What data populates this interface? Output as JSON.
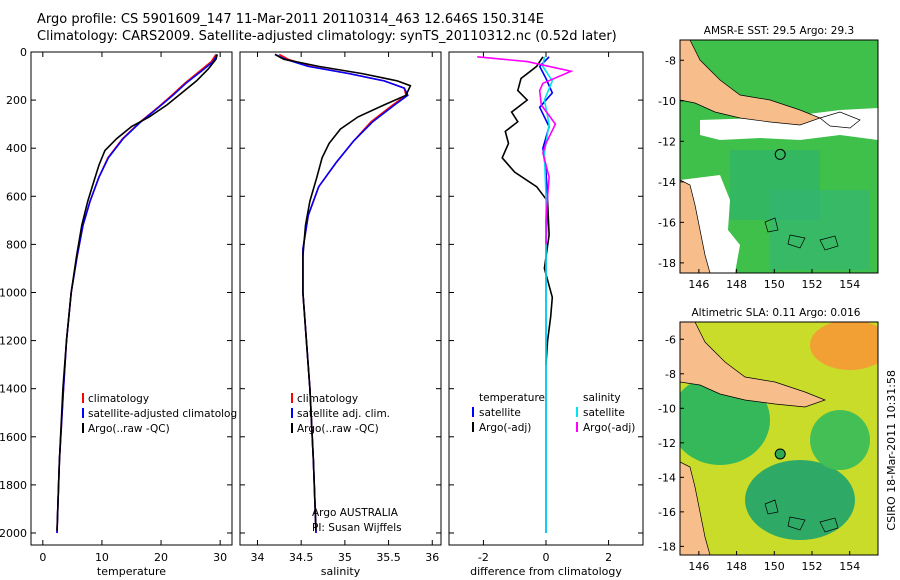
{
  "header": {
    "line1": "Argo profile: CS 5901609_147 11-Mar-2011 20110314_463 12.646S 150.314E",
    "line2": "Climatology: CARS2009. Satellite-adjusted climatology: synTS_20110312.nc (0.52d later)"
  },
  "side_stamp": "CSIRO 18-Mar-2011 10:31:58",
  "colors": {
    "clim": "#ff0000",
    "sat": "#0000ff",
    "argo": "#000000",
    "sat_sal": "#00e5ee",
    "argo_sal": "#ff00ff",
    "land": "#f7be8c",
    "sea_green": "#3fc84a",
    "sea_yellow": "#d8e020"
  },
  "chart_data": [
    {
      "type": "line",
      "panel": "temperature",
      "xlabel": "temperature",
      "ylabel": "",
      "xlim": [
        -2,
        32
      ],
      "ylim": [
        2050,
        0
      ],
      "xticks": [
        "0",
        "10",
        "20",
        "30"
      ],
      "xtick_values": [
        0,
        10,
        20,
        30
      ],
      "yticks": [
        "0",
        "200",
        "400",
        "600",
        "800",
        "1000",
        "1200",
        "1400",
        "1600",
        "1800",
        "2000"
      ],
      "ytick_values": [
        0,
        200,
        400,
        600,
        800,
        1000,
        1200,
        1400,
        1600,
        1800,
        2000
      ],
      "legend": [
        "climatology",
        "satellite-adjusted climatolog",
        "Argo(..raw -QC)"
      ],
      "series": [
        {
          "name": "climatology",
          "color": "clim",
          "x": [
            29.3,
            28.5,
            26.5,
            24.0,
            21.8,
            19.5,
            16.5,
            13.5,
            11.0,
            9.5,
            8.0,
            6.8,
            5.8,
            4.8,
            4.0,
            3.5,
            2.8,
            2.4
          ],
          "y": [
            10,
            40,
            80,
            130,
            180,
            230,
            290,
            360,
            440,
            520,
            620,
            720,
            850,
            1000,
            1200,
            1400,
            1700,
            2000
          ]
        },
        {
          "name": "satellite-adjusted climatolog",
          "color": "sat",
          "x": [
            29.5,
            28.8,
            26.8,
            24.2,
            22.0,
            19.6,
            16.6,
            13.6,
            11.1,
            9.5,
            8.0,
            6.8,
            5.8,
            4.8,
            4.0,
            3.5,
            2.8,
            2.4
          ],
          "y": [
            10,
            40,
            80,
            130,
            180,
            230,
            290,
            360,
            440,
            520,
            620,
            720,
            850,
            1000,
            1200,
            1400,
            1700,
            2000
          ]
        },
        {
          "name": "Argo(..raw -QC)",
          "color": "argo",
          "x": [
            29.5,
            29.3,
            28.0,
            26.0,
            23.5,
            21.0,
            18.0,
            15.0,
            12.5,
            10.5,
            9.5,
            8.6,
            7.6,
            6.6,
            5.7,
            4.8,
            4.0,
            3.4,
            2.8,
            2.4
          ],
          "y": [
            10,
            30,
            70,
            120,
            170,
            220,
            270,
            310,
            360,
            410,
            470,
            540,
            620,
            720,
            850,
            1000,
            1200,
            1400,
            1700,
            1990
          ]
        }
      ]
    },
    {
      "type": "line",
      "panel": "salinity",
      "xlabel": "salinity",
      "ylabel": "",
      "xlim": [
        33.8,
        36.1
      ],
      "ylim": [
        2050,
        0
      ],
      "xticks": [
        "34",
        "34.5",
        "35",
        "35.5",
        "36"
      ],
      "xtick_values": [
        34,
        34.5,
        35,
        35.5,
        36
      ],
      "legend": [
        "climatology",
        "satellite adj. clim.",
        "Argo(..raw -QC)"
      ],
      "annotation": [
        "Argo AUSTRALIA",
        "PI: Susan Wijffels"
      ],
      "series": [
        {
          "name": "climatology",
          "color": "clim",
          "x": [
            34.25,
            34.35,
            34.6,
            35.05,
            35.45,
            35.68,
            35.7,
            35.55,
            35.3,
            35.1,
            34.9,
            34.7,
            34.58,
            34.52,
            34.52,
            34.56,
            34.6,
            34.64,
            34.67
          ],
          "y": [
            10,
            30,
            60,
            90,
            120,
            150,
            180,
            220,
            290,
            370,
            460,
            560,
            680,
            820,
            1000,
            1200,
            1400,
            1700,
            2000
          ]
        },
        {
          "name": "satellite adj. clim.",
          "color": "sat",
          "x": [
            34.2,
            34.32,
            34.58,
            35.05,
            35.45,
            35.68,
            35.72,
            35.57,
            35.32,
            35.1,
            34.9,
            34.7,
            34.58,
            34.52,
            34.52,
            34.56,
            34.6,
            34.64,
            34.67
          ],
          "y": [
            10,
            30,
            60,
            90,
            120,
            150,
            180,
            220,
            290,
            370,
            460,
            560,
            680,
            820,
            1000,
            1200,
            1400,
            1700,
            2000
          ]
        },
        {
          "name": "Argo(..raw -QC)",
          "color": "argo",
          "x": [
            34.2,
            34.3,
            34.7,
            35.2,
            35.6,
            35.75,
            35.7,
            35.45,
            35.15,
            34.95,
            34.82,
            34.74,
            34.68,
            34.6,
            34.55,
            34.52,
            34.52,
            34.56,
            34.6,
            34.64,
            34.67
          ],
          "y": [
            10,
            30,
            60,
            90,
            120,
            140,
            180,
            220,
            270,
            320,
            380,
            440,
            520,
            620,
            720,
            850,
            1000,
            1200,
            1400,
            1700,
            1990
          ]
        }
      ]
    },
    {
      "type": "line",
      "panel": "difference",
      "xlabel": "difference from climatology",
      "ylabel": "",
      "xlim": [
        -3.1,
        3.1
      ],
      "ylim": [
        2050,
        0
      ],
      "xticks": [
        "-2",
        "0",
        "2"
      ],
      "xtick_values": [
        -2,
        0,
        2
      ],
      "legend_left_title": "temperature",
      "legend_right_title": "salinity",
      "legend_left": [
        "satellite",
        "Argo(-adj)"
      ],
      "legend_right": [
        "satellite",
        "Argo(-adj)"
      ],
      "series": [
        {
          "name": "temperature satellite",
          "color": "sat",
          "x": [
            0.1,
            -0.2,
            0.0,
            0.2,
            -0.2,
            0.1,
            -0.1,
            0.0,
            0.05,
            0.0,
            0.0,
            0.0,
            0.0
          ],
          "y": [
            20,
            60,
            110,
            170,
            230,
            310,
            400,
            500,
            600,
            800,
            1000,
            1500,
            2000
          ]
        },
        {
          "name": "temperature Argo(-adj)",
          "color": "argo",
          "x": [
            -0.1,
            -0.3,
            -0.8,
            -0.9,
            -0.6,
            -1.1,
            -0.9,
            -1.3,
            -1.2,
            -1.4,
            -1.0,
            -0.3,
            0.05,
            0.1,
            -0.05,
            0.2,
            0.15,
            0.05,
            0.0
          ],
          "y": [
            20,
            60,
            110,
            160,
            200,
            250,
            290,
            330,
            380,
            440,
            500,
            560,
            620,
            760,
            900,
            1020,
            1100,
            1200,
            1300
          ]
        },
        {
          "name": "salinity satellite",
          "color": "sat_sal",
          "x": [
            -0.05,
            -0.1,
            0.2,
            -0.05,
            0.1,
            -0.05,
            0.0,
            0.0,
            0.0
          ],
          "y": [
            20,
            60,
            120,
            200,
            300,
            420,
            600,
            1000,
            2000
          ]
        },
        {
          "name": "salinity Argo(-adj)",
          "color": "argo_sal",
          "x": [
            -2.2,
            -0.6,
            0.8,
            -0.1,
            -0.2,
            -0.15,
            0.3,
            0.0,
            -0.1,
            0.1,
            0.05,
            0.0,
            0.0
          ],
          "y": [
            20,
            40,
            80,
            130,
            160,
            220,
            300,
            380,
            420,
            520,
            600,
            700,
            800
          ]
        }
      ]
    },
    {
      "type": "heatmap",
      "panel": "sst_map",
      "title": "AMSR-E SST: 29.5 Argo: 29.3",
      "xlim": [
        145,
        155.5
      ],
      "ylim": [
        -18.5,
        -7
      ],
      "xticks": [
        "146",
        "148",
        "150",
        "152",
        "154"
      ],
      "xtick_values": [
        146,
        148,
        150,
        152,
        154
      ],
      "yticks": [
        "-8",
        "-10",
        "-12",
        "-14",
        "-16",
        "-18"
      ],
      "ytick_values": [
        -8,
        -10,
        -12,
        -14,
        -16,
        -18
      ],
      "marker": {
        "lon": 150.314,
        "lat": -12.646
      }
    },
    {
      "type": "heatmap",
      "panel": "sla_map",
      "title": "Altimetric SLA: 0.11 Argo: 0.016",
      "xlim": [
        145,
        155.5
      ],
      "ylim": [
        -18.5,
        -5
      ],
      "xticks": [
        "146",
        "148",
        "150",
        "152",
        "154"
      ],
      "xtick_values": [
        146,
        148,
        150,
        152,
        154
      ],
      "yticks": [
        "-6",
        "-8",
        "-10",
        "-12",
        "-14",
        "-16",
        "-18"
      ],
      "ytick_values": [
        -6,
        -8,
        -10,
        -12,
        -14,
        -16,
        -18
      ],
      "marker": {
        "lon": 150.314,
        "lat": -12.646
      }
    }
  ]
}
